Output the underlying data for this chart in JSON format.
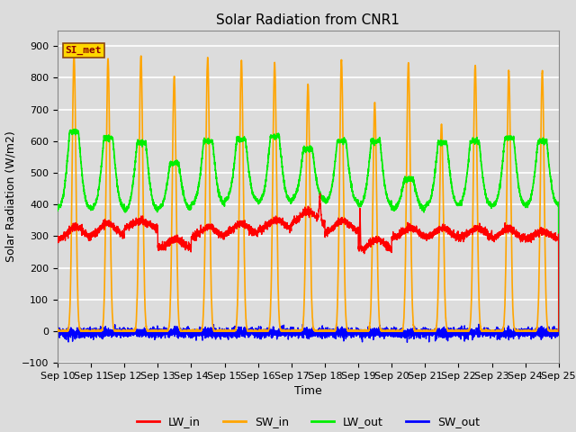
{
  "title": "Solar Radiation from CNR1",
  "xlabel": "Time",
  "ylabel": "Solar Radiation (W/m2)",
  "ylim": [
    -100,
    950
  ],
  "yticks": [
    -100,
    0,
    100,
    200,
    300,
    400,
    500,
    600,
    700,
    800,
    900
  ],
  "bg_color": "#dcdcdc",
  "plot_bg_color": "#dcdcdc",
  "grid_color": "white",
  "series": {
    "LW_in": {
      "color": "red",
      "lw": 1.0
    },
    "SW_in": {
      "color": "orange",
      "lw": 1.2
    },
    "LW_out": {
      "color": "#00ee00",
      "lw": 1.2
    },
    "SW_out": {
      "color": "blue",
      "lw": 1.0
    }
  },
  "annotation": {
    "text": "SI_met",
    "fontsize": 8,
    "color": "#8B0000",
    "bg": "#FFD700",
    "border_color": "#8B4513"
  },
  "legend": {
    "ncol": 4,
    "fontsize": 9
  },
  "n_days": 15,
  "pts_per_day": 288,
  "sw_peaks": [
    875,
    860,
    870,
    805,
    865,
    855,
    845,
    780,
    855,
    720,
    848,
    655,
    840,
    820,
    820
  ],
  "lw_out_peaks": [
    630,
    610,
    595,
    530,
    600,
    605,
    615,
    575,
    600,
    600,
    480,
    595,
    600,
    610,
    600
  ],
  "lw_out_base": [
    385,
    385,
    380,
    385,
    400,
    410,
    405,
    415,
    405,
    395,
    385,
    395,
    395,
    395,
    395
  ],
  "lw_in_base": [
    290,
    300,
    325,
    260,
    295,
    305,
    320,
    340,
    310,
    255,
    295,
    295,
    295,
    290,
    290
  ],
  "lw_in_amp": [
    40,
    40,
    25,
    30,
    35,
    35,
    30,
    40,
    40,
    35,
    30,
    30,
    30,
    35,
    25
  ]
}
